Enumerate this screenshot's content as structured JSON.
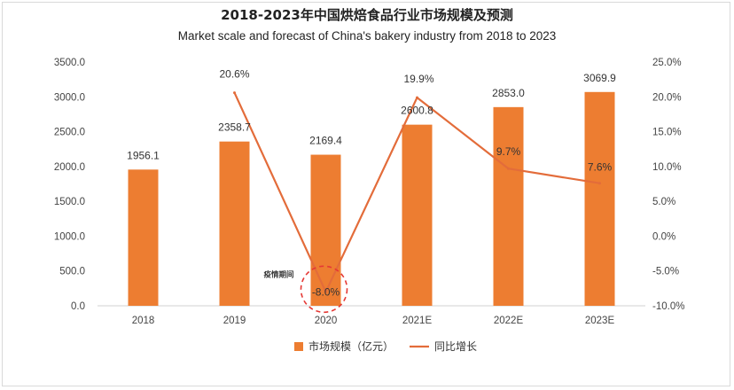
{
  "chart_data": {
    "type": "bar+line",
    "title": "2018-2023年中国烘焙食品行业市场规模及预测",
    "subtitle": "Market scale and forecast of China's bakery industry from 2018 to 2023",
    "categories": [
      "2018",
      "2019",
      "2020",
      "2021E",
      "2022E",
      "2023E"
    ],
    "series": [
      {
        "name": "市场规模（亿元）",
        "type": "bar",
        "axis": "left",
        "color": "#ED7D31",
        "values": [
          1956.1,
          2358.7,
          2169.4,
          2600.8,
          2853.0,
          3069.9
        ],
        "labels": [
          "1956.1",
          "2358.7",
          "2169.4",
          "2600.8",
          "2853.0",
          "3069.9"
        ]
      },
      {
        "name": "同比增长",
        "type": "line",
        "axis": "right",
        "color": "#E36C3A",
        "x": [
          "2019",
          "2020",
          "2021E",
          "2022E",
          "2023E"
        ],
        "values": [
          20.6,
          -8.0,
          19.9,
          9.7,
          7.6
        ],
        "labels": [
          "20.6%",
          "-8.0%",
          "19.9%",
          "9.7%",
          "7.6%"
        ]
      }
    ],
    "y_left": {
      "min": 0,
      "max": 3500,
      "ticks": [
        0,
        500,
        1000,
        1500,
        2000,
        2500,
        3000,
        3500
      ],
      "tick_labels": [
        "0.0",
        "500.0",
        "1000.0",
        "1500.0",
        "2000.0",
        "2500.0",
        "3000.0",
        "3500.0"
      ]
    },
    "y_right": {
      "min": -10,
      "max": 25,
      "ticks": [
        -10,
        -5,
        0,
        5,
        10,
        15,
        20,
        25
      ],
      "tick_labels": [
        "-10.0%",
        "-5.0%",
        "0.0%",
        "5.0%",
        "10.0%",
        "15.0%",
        "20.0%",
        "25.0%"
      ]
    },
    "annotation": {
      "text": "疫情期间",
      "category": "2020",
      "value": -8.0,
      "color": "#E53935"
    },
    "legend": {
      "position": "bottom"
    },
    "grid": false
  }
}
